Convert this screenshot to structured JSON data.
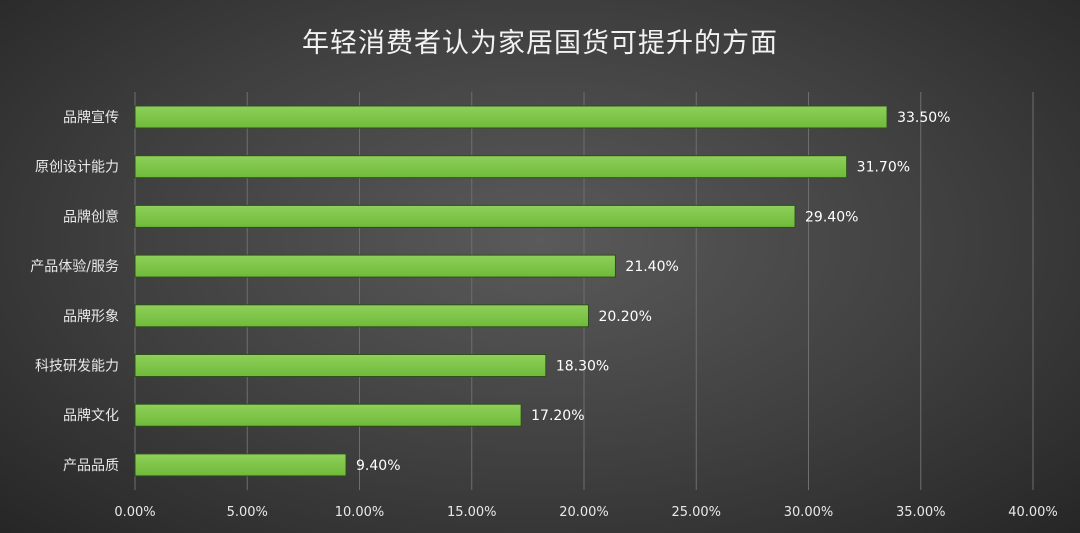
{
  "chart_data": {
    "type": "bar",
    "orientation": "horizontal",
    "title": "年轻消费者认为家居国货可提升的方面",
    "xlabel": "",
    "ylabel": "",
    "categories": [
      "品牌宣传",
      "原创设计能力",
      "品牌创意",
      "产品体验/服务",
      "品牌形象",
      "科技研发能力",
      "品牌文化",
      "产品品质"
    ],
    "values": [
      33.5,
      31.7,
      29.4,
      21.4,
      20.2,
      18.3,
      17.2,
      9.4
    ],
    "data_labels": [
      "33.50%",
      "31.70%",
      "29.40%",
      "21.40%",
      "20.20%",
      "18.30%",
      "17.20%",
      "9.40%"
    ],
    "xlim": [
      0,
      40
    ],
    "x_ticks": [
      0,
      5,
      10,
      15,
      20,
      25,
      30,
      35,
      40
    ],
    "x_tick_labels": [
      "0.00%",
      "5.00%",
      "10.00%",
      "15.00%",
      "20.00%",
      "25.00%",
      "30.00%",
      "35.00%",
      "40.00%"
    ],
    "grid": true,
    "legend": "none",
    "bar_color": "#6fba3a",
    "bar_color_light": "#8fd05a",
    "text_color": "#e8e8e8"
  }
}
